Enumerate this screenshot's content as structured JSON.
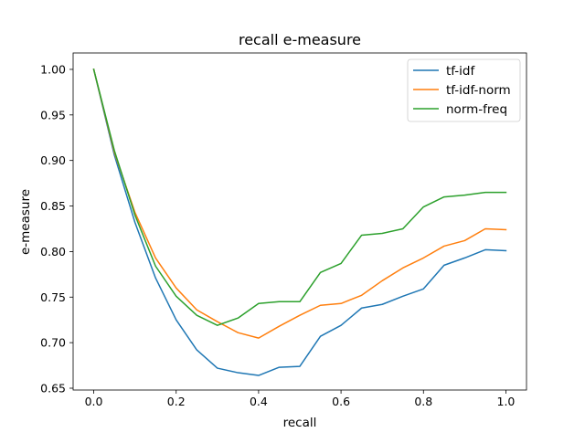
{
  "chart_data": {
    "type": "line",
    "title": "recall e-measure",
    "xlabel": "recall",
    "ylabel": "e-measure",
    "xlim": [
      -0.05,
      1.05
    ],
    "ylim": [
      0.648,
      1.018
    ],
    "xticks": [
      0.0,
      0.2,
      0.4,
      0.6,
      0.8,
      1.0
    ],
    "xtick_labels": [
      "0.0",
      "0.2",
      "0.4",
      "0.6",
      "0.8",
      "1.0"
    ],
    "yticks": [
      0.65,
      0.7,
      0.75,
      0.8,
      0.85,
      0.9,
      0.95,
      1.0
    ],
    "ytick_labels": [
      "0.65",
      "0.70",
      "0.75",
      "0.80",
      "0.85",
      "0.90",
      "0.95",
      "1.00"
    ],
    "grid": false,
    "legend_position": "top-right",
    "x": [
      0.0,
      0.05,
      0.1,
      0.15,
      0.2,
      0.25,
      0.3,
      0.35,
      0.4,
      0.45,
      0.5,
      0.55,
      0.6,
      0.65,
      0.7,
      0.75,
      0.8,
      0.85,
      0.9,
      0.95,
      1.0
    ],
    "series": [
      {
        "name": "tf-idf",
        "color": "#1f77b4",
        "values": [
          1.0,
          0.906,
          0.832,
          0.771,
          0.725,
          0.692,
          0.672,
          0.667,
          0.664,
          0.673,
          0.674,
          0.707,
          0.719,
          0.738,
          0.742,
          0.751,
          0.759,
          0.785,
          0.793,
          0.802,
          0.801
        ]
      },
      {
        "name": "tf-idf-norm",
        "color": "#ff7f0e",
        "values": [
          1.0,
          0.909,
          0.843,
          0.793,
          0.76,
          0.736,
          0.723,
          0.711,
          0.705,
          0.718,
          0.73,
          0.741,
          0.743,
          0.752,
          0.768,
          0.782,
          0.793,
          0.806,
          0.812,
          0.825,
          0.824
        ]
      },
      {
        "name": "norm-freq",
        "color": "#2ca02c",
        "values": [
          1.0,
          0.911,
          0.84,
          0.784,
          0.751,
          0.73,
          0.719,
          0.727,
          0.743,
          0.745,
          0.745,
          0.777,
          0.787,
          0.818,
          0.82,
          0.825,
          0.849,
          0.86,
          0.862,
          0.865,
          0.865
        ]
      }
    ]
  }
}
